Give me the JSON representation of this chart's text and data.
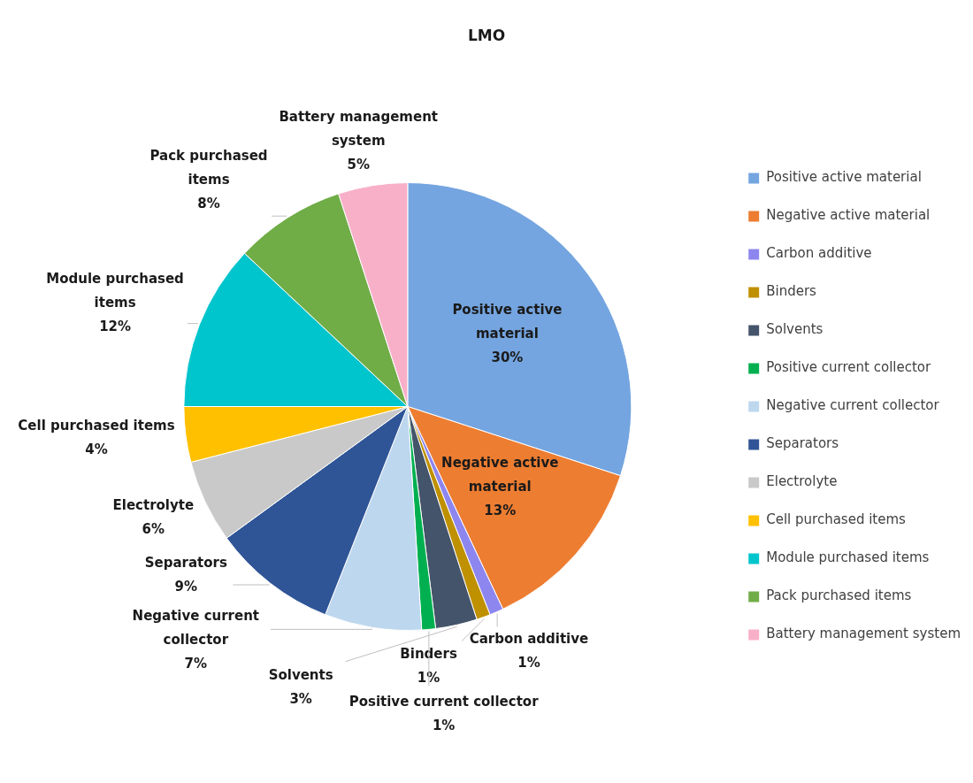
{
  "chart_data": {
    "type": "pie",
    "title": "LMO",
    "categories": [
      "Positive active material",
      "Negative active material",
      "Carbon additive",
      "Binders",
      "Solvents",
      "Positive current collector",
      "Negative current collector",
      "Separators",
      "Electrolyte",
      "Cell purchased items",
      "Module purchased items",
      "Pack purchased items",
      "Battery management system"
    ],
    "values": [
      30,
      13,
      1,
      1,
      3,
      1,
      7,
      9,
      6,
      4,
      12,
      8,
      5
    ],
    "value_labels": [
      "30%",
      "13%",
      "1%",
      "1%",
      "3%",
      "1%",
      "7%",
      "9%",
      "6%",
      "4%",
      "12%",
      "8%",
      "5%"
    ],
    "colors": [
      "#74a5e0",
      "#ed7d31",
      "#8e86ef",
      "#bf9000",
      "#44546a",
      "#00b050",
      "#bdd7ee",
      "#2f5597",
      "#c9c9c9",
      "#ffc000",
      "#00c5cd",
      "#70ad47",
      "#f8b0c8"
    ],
    "legend": "right"
  }
}
